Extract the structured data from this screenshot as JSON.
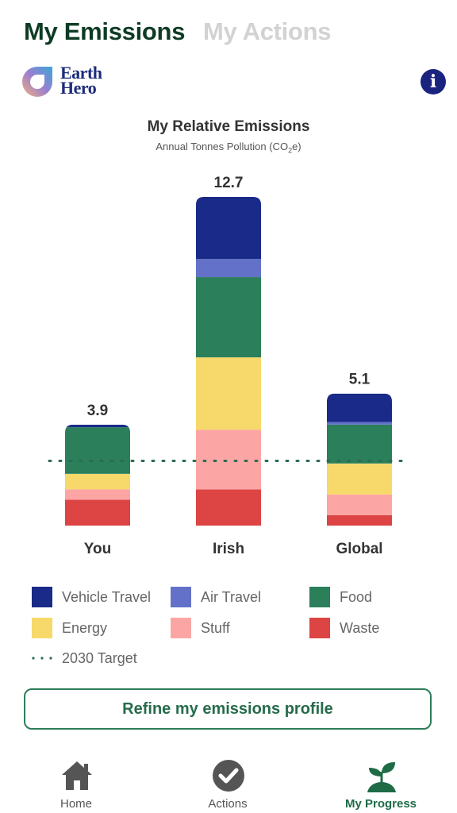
{
  "tabs": {
    "emissions": "My Emissions",
    "actions": "My Actions"
  },
  "logo": {
    "line1": "Earth",
    "line2": "Hero"
  },
  "info_icon": "i",
  "chart_data": {
    "type": "bar",
    "stacked": true,
    "title": "My Relative Emissions",
    "subtitle": "Annual Tonnes Pollution  (CO",
    "subtitle_sub": "2",
    "subtitle_end": "e)",
    "categories": [
      "You",
      "Irish",
      "Global"
    ],
    "totals_labels": [
      "3.9",
      "12.7",
      "5.1"
    ],
    "series": [
      {
        "name": "Waste",
        "color": "#dd4444",
        "values": [
          1.0,
          1.4,
          0.4
        ]
      },
      {
        "name": "Stuff",
        "color": "#fca5a5",
        "values": [
          0.4,
          2.3,
          0.8
        ]
      },
      {
        "name": "Energy",
        "color": "#f7d86b",
        "values": [
          0.6,
          2.8,
          1.2
        ]
      },
      {
        "name": "Food",
        "color": "#2b7f5b",
        "values": [
          1.8,
          3.1,
          1.5
        ]
      },
      {
        "name": "Air Travel",
        "color": "#6372c8",
        "values": [
          0.0,
          0.7,
          0.1
        ]
      },
      {
        "name": "Vehicle Travel",
        "color": "#1a2a88",
        "values": [
          0.1,
          2.4,
          1.1
        ]
      }
    ],
    "target": {
      "name": "2030 Target",
      "value": 2.5,
      "color": "#2b6b4f"
    },
    "ylim": [
      0,
      12.7
    ]
  },
  "legend": [
    {
      "label": "Vehicle Travel",
      "color": "#1a2a88"
    },
    {
      "label": "Air Travel",
      "color": "#6372c8"
    },
    {
      "label": "Food",
      "color": "#2b7f5b"
    },
    {
      "label": "Energy",
      "color": "#f7d86b"
    },
    {
      "label": "Stuff",
      "color": "#fca5a5"
    },
    {
      "label": "Waste",
      "color": "#dd4444"
    },
    {
      "label": "2030 Target",
      "color": "#2b6b4f"
    }
  ],
  "refine_button": "Refine my emissions profile",
  "nav": {
    "home": "Home",
    "actions": "Actions",
    "progress": "My Progress"
  },
  "colors": {
    "brand_dark": "#0e3b24",
    "brand_green": "#2d7d5a",
    "info_navy": "#1a237e"
  }
}
